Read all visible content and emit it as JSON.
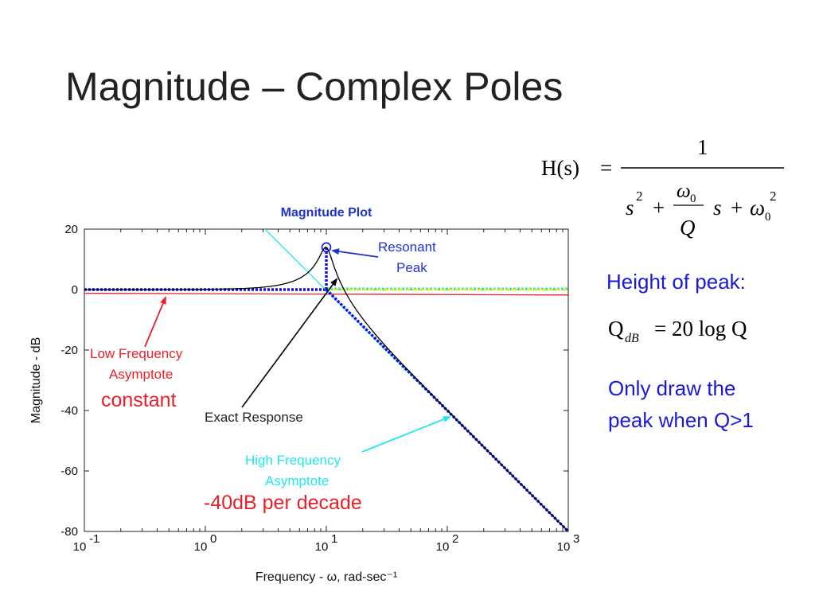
{
  "slide": {
    "title": "Magnitude – Complex Poles"
  },
  "equation": {
    "lhs": "H(s)",
    "numerator": "1",
    "den_s2": "s",
    "den_sup2": "2",
    "den_plus1": "+",
    "den_w0": "ω",
    "den_sub0": "0",
    "den_Q": "Q",
    "den_s": "s",
    "den_plus2": "+",
    "den_w0b": "ω",
    "den_sub0b": "0",
    "den_sup2b": "2"
  },
  "notes": {
    "height_label": "Height of peak:",
    "qdb_lhs": "Q",
    "qdb_sub": "dB",
    "qdb_rhs": "= 20 log Q",
    "draw_note_line1": "Only draw the",
    "draw_note_line2": "peak when Q>1"
  },
  "colors": {
    "title_blue": "#2233cc",
    "note_blue": "#1a1ad6",
    "red": "#e8202a",
    "cyan": "#1ee8ee",
    "blue_dotted": "#1010e0",
    "yellow": "#e8e800",
    "exact": "#000000"
  },
  "chart_data": {
    "type": "line",
    "title": "Magnitude Plot",
    "xlabel": "Frequency - ω, rad-sec⁻¹",
    "ylabel": "Magnitude - dB",
    "x_scale": "log",
    "xlim": [
      0.1,
      1000
    ],
    "ylim": [
      -80,
      20
    ],
    "grid": false,
    "x_ticks": [
      0.1,
      1,
      10,
      100,
      1000
    ],
    "x_tick_labels": [
      {
        "base": "10",
        "exp": "-1"
      },
      {
        "base": "10",
        "exp": "0"
      },
      {
        "base": "10",
        "exp": "1"
      },
      {
        "base": "10",
        "exp": "2"
      },
      {
        "base": "10",
        "exp": "3"
      }
    ],
    "y_ticks": [
      20,
      0,
      -20,
      -40,
      -60,
      -80
    ],
    "y_tick_labels": [
      "20",
      "0",
      "-20",
      "-40",
      "-60",
      "-80"
    ],
    "params": {
      "w0": 10,
      "Q": 5
    },
    "series": [
      {
        "role": "exact",
        "color": "#000000",
        "style": "solid",
        "formula": "-20log10(sqrt((1-(w/w0)^2)^2+((w/w0)/Q)^2))"
      },
      {
        "role": "asymptote-low",
        "color": "#e8202a",
        "style": "solid",
        "x": [
          0.1,
          1000
        ],
        "y": [
          -1.2,
          -1.8
        ]
      },
      {
        "role": "asymptote-high",
        "color": "#1ee8ee",
        "style": "solid",
        "x": [
          2.1,
          1000
        ],
        "y": [
          26.8,
          -80
        ]
      },
      {
        "role": "asymptote-low",
        "color": "#1010e0",
        "style": "dotted",
        "x": [
          0.1,
          10
        ],
        "y": [
          0,
          0
        ]
      },
      {
        "role": "asymptote-high",
        "color": "#1010e0",
        "style": "dotted",
        "x": [
          10,
          1000
        ],
        "y": [
          0,
          -80
        ]
      },
      {
        "role": "yellow",
        "color": "#e8e800",
        "style": "dashed",
        "x": [
          10,
          1000
        ],
        "y": [
          0,
          0
        ]
      },
      {
        "role": "cyan-flat",
        "color": "#1ee8ee",
        "style": "dotted",
        "x": [
          10,
          1000
        ],
        "y": [
          0.2,
          0.2
        ]
      },
      {
        "role": "peak-stem",
        "color": "#1010e0",
        "style": "dotted",
        "x": [
          10,
          10
        ],
        "y": [
          0,
          14
        ]
      }
    ],
    "peak_marker": {
      "x": 10,
      "y": 14
    },
    "annotations": [
      {
        "text_lines": [
          "Resonant",
          "Peak"
        ],
        "color": "#2233cc"
      },
      {
        "text_lines": [
          "Low Frequency",
          "Asymptote"
        ],
        "color": "#e8202a"
      },
      {
        "text_lines": [
          "Exact Response"
        ],
        "color": "#222222"
      },
      {
        "text_lines": [
          "High Frequency",
          "Asymptote"
        ],
        "color": "#1ee8ee"
      }
    ],
    "labels_extra": {
      "constant": "constant",
      "slope": "-40dB per decade"
    }
  }
}
